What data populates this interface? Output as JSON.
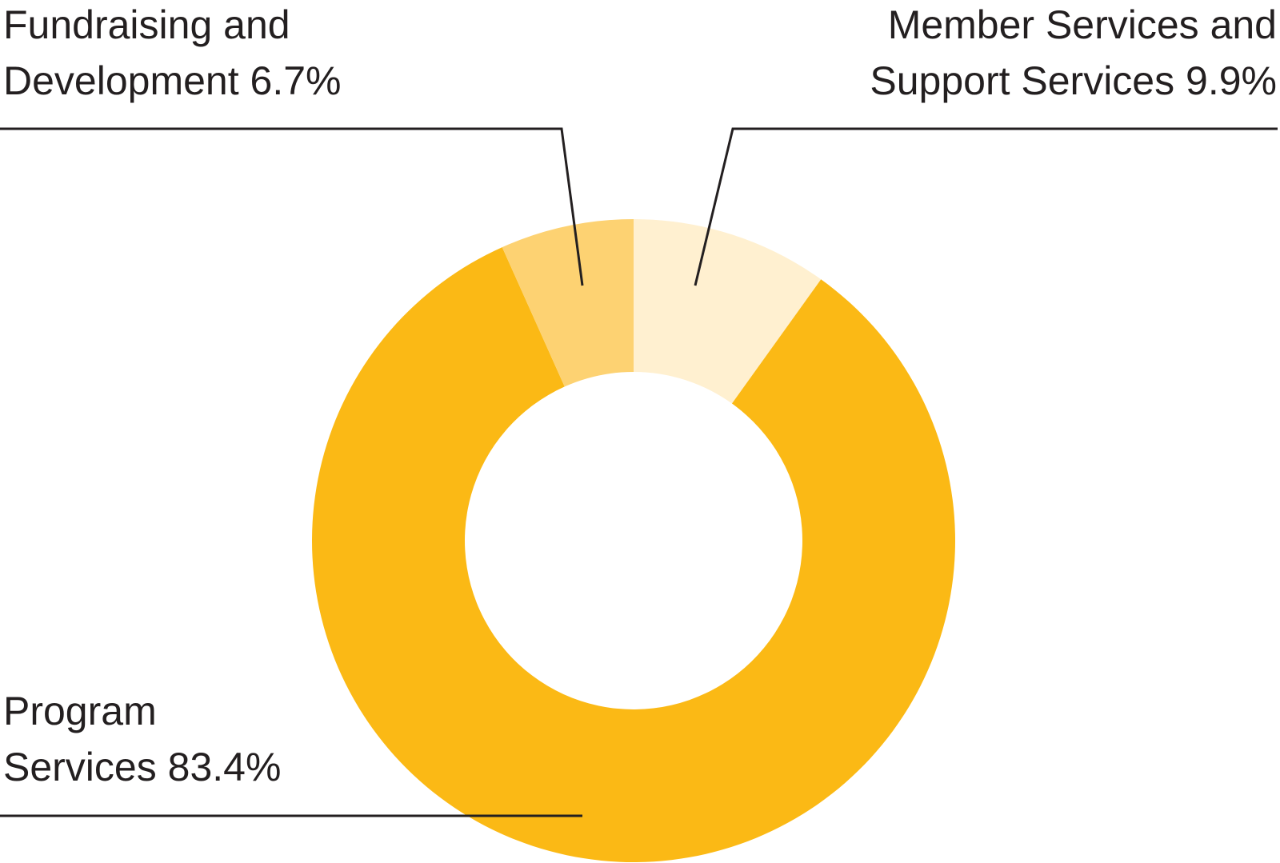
{
  "chart_data": {
    "type": "donut",
    "categories": [
      "Member Services and Support Services",
      "Program Services",
      "Fundraising and Development"
    ],
    "values": [
      9.9,
      83.4,
      6.7
    ],
    "value_labels": [
      "9.9%",
      "83.4%",
      "6.7%"
    ],
    "colors": [
      "#fff0d0",
      "#fbb915",
      "#fdd272"
    ]
  }
}
